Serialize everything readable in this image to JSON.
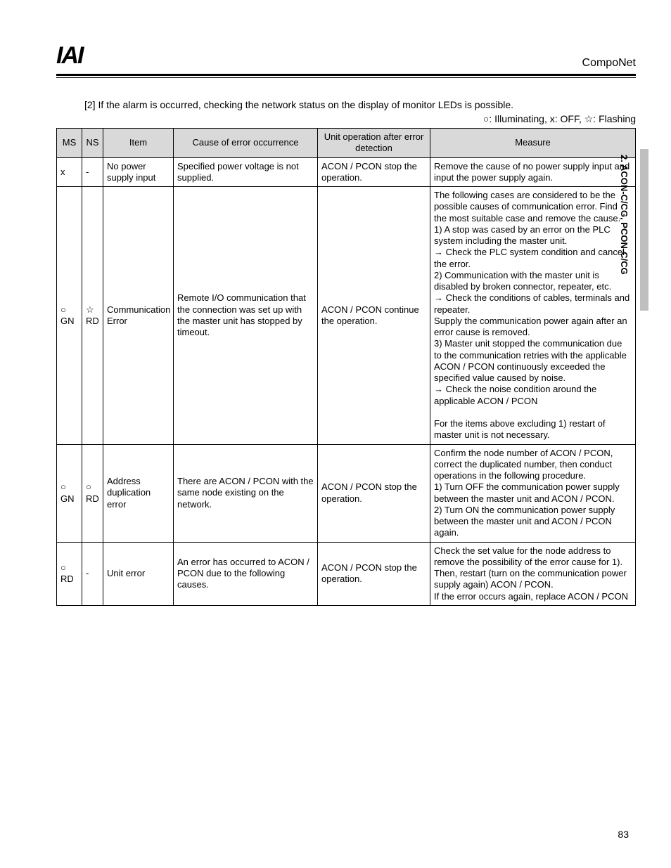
{
  "header": {
    "logo": "IAI",
    "brand": "CompoNet"
  },
  "side_tab": "2. ACON-C/CG, PCON-C/CG",
  "intro": "[2]   If the alarm is occurred, checking the network status on the display of monitor LEDs is possible.",
  "legend": "○: Illuminating, x: OFF,  ☆: Flashing",
  "table": {
    "headers": {
      "ms": "MS",
      "ns": "NS",
      "item": "Item",
      "cause": "Cause of error occurrence",
      "unit": "Unit operation after error detection",
      "measure": "Measure"
    },
    "rows": [
      {
        "ms": "x",
        "ns": "-",
        "item": "No power supply input",
        "cause": "Specified power voltage is not supplied.",
        "unit": "ACON / PCON stop the operation.",
        "measure": "Remove the cause of no power supply input and input the power supply again."
      },
      {
        "ms": "○\nGN",
        "ns": "☆\nRD",
        "item": "Communication Error",
        "cause": "Remote I/O communication that the connection was set up with the master unit has stopped by timeout.",
        "unit": "ACON / PCON continue the operation.",
        "measure": "The following cases are considered to be the possible causes of communication error.   Find the most suitable case and remove the cause.\n1) A stop was cased by an error on the PLC system including the master unit.\n→ Check the PLC system condition and cancel the error.\n2) Communication with the master unit is disabled by broken connector, repeater, etc.\n→ Check the conditions of cables, terminals and repeater.\nSupply the communication power again after an error cause is removed.\n3) Master unit stopped the communication due to the communication retries with the applicable ACON / PCON continuously exceeded the specified value caused by noise.\n→ Check the noise condition around the applicable ACON / PCON\n\nFor the items above excluding 1) restart of master unit is not necessary."
      },
      {
        "ms": "○\nGN",
        "ns": "○\nRD",
        "item": "Address duplication error",
        "cause": "There are ACON / PCON with the same node existing on the network.",
        "unit": "ACON / PCON stop the operation.",
        "measure": "Confirm the node number of ACON / PCON, correct the duplicated number, then conduct operations in the following procedure.\n1)  Turn OFF the communication power supply between the master unit and ACON / PCON.\n2)  Turn ON the communication power supply between the master unit and ACON / PCON again."
      },
      {
        "ms": "○\nRD",
        "ns": "-",
        "item": "Unit error",
        "cause": "An error has occurred to ACON / PCON due to the following causes.",
        "unit": "ACON / PCON stop the operation.",
        "measure": "Check the set value for the node address to remove the possibility of the error cause for 1).\nThen, restart (turn on the communication power supply again) ACON / PCON.\nIf the error occurs again, replace ACON / PCON"
      }
    ]
  },
  "page_number": "83"
}
